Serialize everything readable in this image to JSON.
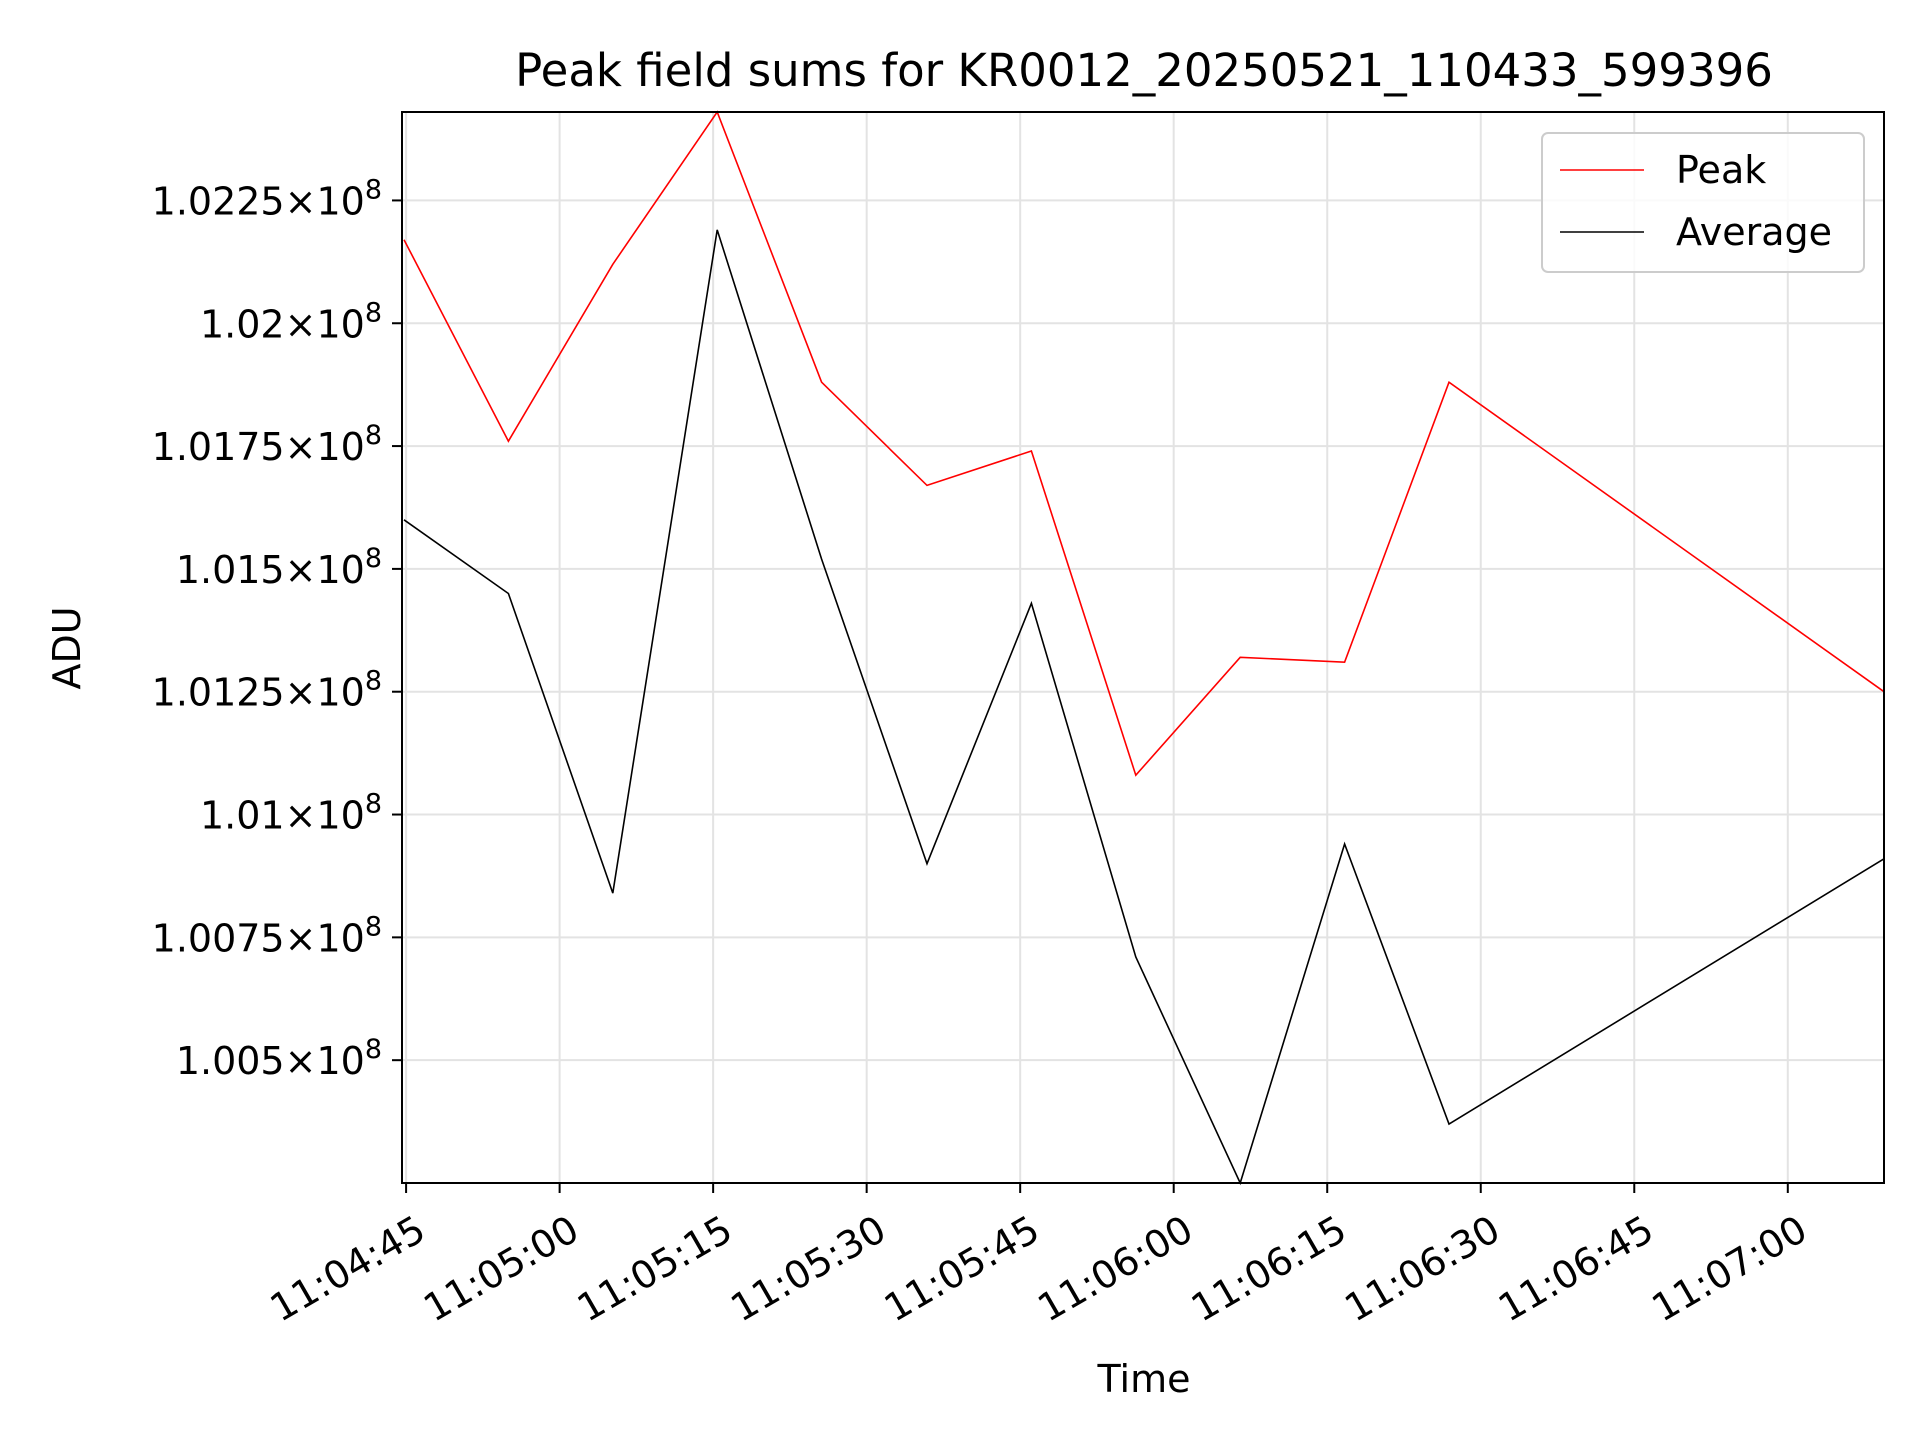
{
  "chart_data": {
    "type": "line",
    "title": "Peak field sums for KR0012_20250521_110433_599396",
    "xlabel": "Time",
    "ylabel": "ADU",
    "x_tick_labels": [
      "11:04:45",
      "11:05:00",
      "11:05:15",
      "11:05:30",
      "11:05:45",
      "11:06:00",
      "11:06:15",
      "11:06:30",
      "11:06:45",
      "11:07:00"
    ],
    "y_tick_labels": [
      {
        "value": 100500000,
        "mantissa": "1.005",
        "exponent": "8"
      },
      {
        "value": 100750000,
        "mantissa": "1.0075",
        "exponent": "8"
      },
      {
        "value": 101000000,
        "mantissa": "1.01",
        "exponent": "8"
      },
      {
        "value": 101250000,
        "mantissa": "1.0125",
        "exponent": "8"
      },
      {
        "value": 101500000,
        "mantissa": "1.015",
        "exponent": "8"
      },
      {
        "value": 101750000,
        "mantissa": "1.0175",
        "exponent": "8"
      },
      {
        "value": 102000000,
        "mantissa": "1.02",
        "exponent": "8"
      },
      {
        "value": 102250000,
        "mantissa": "1.0225",
        "exponent": "8"
      }
    ],
    "x": [
      "11:04:44.8",
      "11:04:55.0",
      "11:05:05.2",
      "11:05:15.4",
      "11:05:25.6",
      "11:05:35.9",
      "11:05:46.1",
      "11:05:56.3",
      "11:06:06.5",
      "11:06:16.7",
      "11:06:26.9",
      "11:07:09.4"
    ],
    "series": [
      {
        "name": "Peak",
        "color": "#ff0000",
        "values": [
          102170000,
          101760000,
          102120000,
          102430000,
          101880000,
          101670000,
          101740000,
          101080000,
          101320000,
          101310000,
          101880000,
          101250000
        ]
      },
      {
        "name": "Average",
        "color": "#000000",
        "values": [
          101600000,
          101450000,
          100840000,
          102190000,
          101520000,
          100900000,
          101430000,
          100710000,
          100250000,
          100940000,
          100370000,
          100910000
        ]
      }
    ],
    "xlim": [
      "11:04:44.6",
      "11:07:09.4"
    ],
    "ylim": [
      100250000,
      102430000
    ],
    "grid": true,
    "legend_position": "upper right"
  }
}
